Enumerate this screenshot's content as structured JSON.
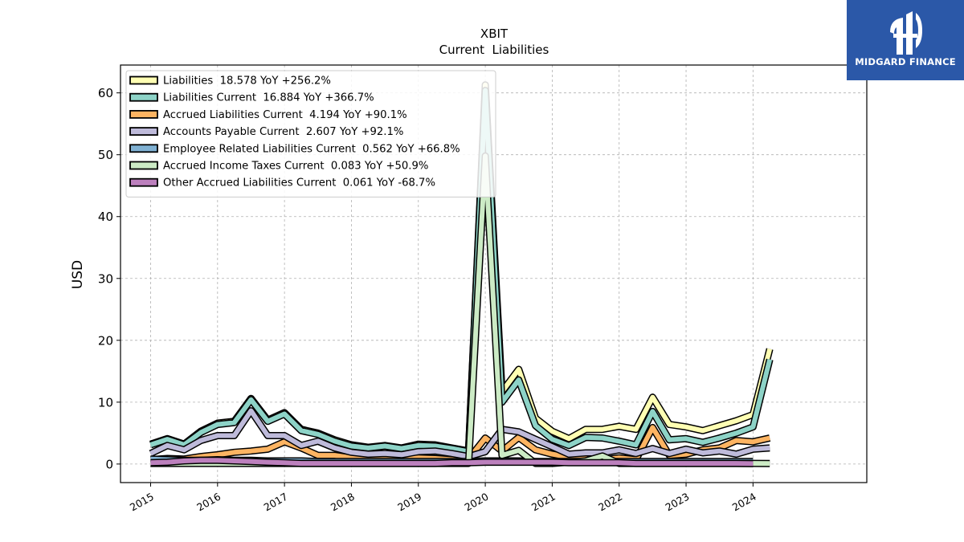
{
  "title": "XBIT",
  "subtitle": "Current  Liabilities",
  "brand": {
    "name": "MIDGARD FINANCE",
    "color": "#2b58a8"
  },
  "chart_data": {
    "type": "line",
    "ylabel": "USD",
    "xlabel": "",
    "ylim": [
      -3,
      64.5
    ],
    "yticks": [
      0,
      10,
      20,
      30,
      40,
      50,
      60
    ],
    "xlim": [
      2014.55,
      2025.7
    ],
    "xticks": [
      2015,
      2016,
      2017,
      2018,
      2019,
      2020,
      2021,
      2022,
      2023,
      2024
    ],
    "grid": true,
    "legend_position": "top-left",
    "series": [
      {
        "name": "Liabilities",
        "legend": "Liabilities  18.578 YoY +256.2%",
        "color": "#ffffb3",
        "points": [
          [
            2015.0,
            3.2
          ],
          [
            2015.25,
            4.1
          ],
          [
            2015.5,
            3.2
          ],
          [
            2015.75,
            5.3
          ],
          [
            2016.0,
            6.6
          ],
          [
            2016.25,
            6.9
          ],
          [
            2016.5,
            10.6
          ],
          [
            2016.75,
            7.1
          ],
          [
            2017.0,
            8.3
          ],
          [
            2017.25,
            5.6
          ],
          [
            2017.5,
            5.0
          ],
          [
            2017.75,
            3.9
          ],
          [
            2018.0,
            3.1
          ],
          [
            2018.25,
            2.7
          ],
          [
            2018.5,
            3.0
          ],
          [
            2018.75,
            2.6
          ],
          [
            2019.0,
            3.2
          ],
          [
            2019.25,
            3.1
          ],
          [
            2019.5,
            2.6
          ],
          [
            2019.75,
            2.1
          ],
          [
            2020.0,
            61.3
          ],
          [
            2020.25,
            11.7
          ],
          [
            2020.5,
            15.3
          ],
          [
            2020.75,
            7.4
          ],
          [
            2021.0,
            5.3
          ],
          [
            2021.25,
            4.1
          ],
          [
            2021.5,
            5.6
          ],
          [
            2021.75,
            5.6
          ],
          [
            2022.0,
            6.1
          ],
          [
            2022.25,
            5.6
          ],
          [
            2022.5,
            10.8
          ],
          [
            2022.75,
            6.4
          ],
          [
            2023.0,
            6.0
          ],
          [
            2023.25,
            5.4
          ],
          [
            2023.5,
            6.2
          ],
          [
            2023.75,
            7.0
          ],
          [
            2024.0,
            8.0
          ],
          [
            2024.25,
            18.6
          ]
        ]
      },
      {
        "name": "Liabilities Current",
        "legend": "Liabilities Current  16.884 YoY +366.7%",
        "color": "#8dd3c7",
        "points": [
          [
            2015.0,
            3.1
          ],
          [
            2015.25,
            4.0
          ],
          [
            2015.5,
            3.1
          ],
          [
            2015.75,
            5.1
          ],
          [
            2016.0,
            6.4
          ],
          [
            2016.25,
            6.7
          ],
          [
            2016.5,
            10.4
          ],
          [
            2016.75,
            6.9
          ],
          [
            2017.0,
            8.1
          ],
          [
            2017.25,
            5.4
          ],
          [
            2017.5,
            4.8
          ],
          [
            2017.75,
            3.7
          ],
          [
            2018.0,
            2.9
          ],
          [
            2018.25,
            2.6
          ],
          [
            2018.5,
            2.9
          ],
          [
            2018.75,
            2.5
          ],
          [
            2019.0,
            3.0
          ],
          [
            2019.25,
            2.9
          ],
          [
            2019.5,
            2.5
          ],
          [
            2019.75,
            2.0
          ],
          [
            2020.0,
            60.4
          ],
          [
            2020.25,
            10.0
          ],
          [
            2020.5,
            13.6
          ],
          [
            2020.75,
            6.2
          ],
          [
            2021.0,
            4.0
          ],
          [
            2021.25,
            3.0
          ],
          [
            2021.5,
            4.3
          ],
          [
            2021.75,
            4.2
          ],
          [
            2022.0,
            3.7
          ],
          [
            2022.25,
            3.1
          ],
          [
            2022.5,
            8.5
          ],
          [
            2022.75,
            3.9
          ],
          [
            2023.0,
            4.1
          ],
          [
            2023.25,
            3.5
          ],
          [
            2023.5,
            4.2
          ],
          [
            2023.75,
            5.0
          ],
          [
            2024.0,
            6.0
          ],
          [
            2024.25,
            16.9
          ]
        ]
      },
      {
        "name": "Accrued Liabilities Current",
        "legend": "Accrued Liabilities Current  4.194 YoY +90.1%",
        "color": "#fdb462",
        "points": [
          [
            2015.0,
            0.7
          ],
          [
            2015.25,
            0.9
          ],
          [
            2015.5,
            0.8
          ],
          [
            2015.75,
            1.2
          ],
          [
            2016.0,
            1.5
          ],
          [
            2016.25,
            1.9
          ],
          [
            2016.5,
            2.1
          ],
          [
            2016.75,
            2.4
          ],
          [
            2017.0,
            3.6
          ],
          [
            2017.25,
            2.6
          ],
          [
            2017.5,
            1.4
          ],
          [
            2017.75,
            1.4
          ],
          [
            2018.0,
            1.0
          ],
          [
            2018.25,
            0.8
          ],
          [
            2018.5,
            1.1
          ],
          [
            2018.75,
            0.9
          ],
          [
            2019.0,
            1.0
          ],
          [
            2019.25,
            0.9
          ],
          [
            2019.5,
            0.7
          ],
          [
            2019.75,
            0.8
          ],
          [
            2020.0,
            4.2
          ],
          [
            2020.25,
            2.1
          ],
          [
            2020.5,
            4.3
          ],
          [
            2020.75,
            2.3
          ],
          [
            2021.0,
            1.6
          ],
          [
            2021.25,
            1.1
          ],
          [
            2021.5,
            0.9
          ],
          [
            2021.75,
            0.7
          ],
          [
            2022.0,
            1.0
          ],
          [
            2022.25,
            0.7
          ],
          [
            2022.5,
            5.9
          ],
          [
            2022.75,
            1.4
          ],
          [
            2023.0,
            1.6
          ],
          [
            2023.25,
            2.3
          ],
          [
            2023.5,
            2.6
          ],
          [
            2023.75,
            3.8
          ],
          [
            2024.0,
            3.6
          ],
          [
            2024.25,
            4.2
          ]
        ]
      },
      {
        "name": "Accounts Payable Current",
        "legend": "Accounts Payable Current  2.607 YoY +92.1%",
        "color": "#bebada",
        "points": [
          [
            2015.0,
            1.7
          ],
          [
            2015.25,
            3.0
          ],
          [
            2015.5,
            2.3
          ],
          [
            2015.75,
            3.8
          ],
          [
            2016.0,
            4.6
          ],
          [
            2016.25,
            4.6
          ],
          [
            2016.5,
            8.6
          ],
          [
            2016.75,
            4.6
          ],
          [
            2017.0,
            4.6
          ],
          [
            2017.25,
            3.0
          ],
          [
            2017.5,
            3.7
          ],
          [
            2017.75,
            2.6
          ],
          [
            2018.0,
            1.9
          ],
          [
            2018.25,
            1.6
          ],
          [
            2018.5,
            1.7
          ],
          [
            2018.75,
            1.5
          ],
          [
            2019.0,
            2.0
          ],
          [
            2019.25,
            2.1
          ],
          [
            2019.5,
            1.7
          ],
          [
            2019.75,
            1.2
          ],
          [
            2020.0,
            2.0
          ],
          [
            2020.25,
            5.6
          ],
          [
            2020.5,
            5.2
          ],
          [
            2020.75,
            4.0
          ],
          [
            2021.0,
            2.8
          ],
          [
            2021.25,
            1.6
          ],
          [
            2021.5,
            1.8
          ],
          [
            2021.75,
            1.8
          ],
          [
            2022.0,
            2.3
          ],
          [
            2022.25,
            1.7
          ],
          [
            2022.5,
            2.5
          ],
          [
            2022.75,
            1.7
          ],
          [
            2023.0,
            2.4
          ],
          [
            2023.25,
            1.8
          ],
          [
            2023.5,
            2.1
          ],
          [
            2023.75,
            1.6
          ],
          [
            2024.0,
            2.4
          ],
          [
            2024.25,
            2.6
          ]
        ]
      },
      {
        "name": "Employee Related Liabilities Current",
        "legend": "Employee Related Liabilities Current  0.562 YoY +66.8%",
        "color": "#80b1d3",
        "points": [
          [
            2015.0,
            0.8
          ],
          [
            2015.25,
            0.7
          ],
          [
            2015.5,
            0.6
          ],
          [
            2015.75,
            0.6
          ],
          [
            2016.0,
            0.7
          ],
          [
            2016.25,
            0.6
          ],
          [
            2016.5,
            0.6
          ],
          [
            2016.75,
            0.5
          ],
          [
            2017.0,
            0.5
          ],
          [
            2017.25,
            0.5
          ],
          [
            2017.5,
            0.4
          ],
          [
            2017.75,
            0.4
          ],
          [
            2018.0,
            0.4
          ],
          [
            2018.25,
            0.4
          ],
          [
            2018.5,
            0.4
          ],
          [
            2018.75,
            0.4
          ],
          [
            2019.0,
            0.4
          ],
          [
            2019.25,
            0.4
          ],
          [
            2019.5,
            0.4
          ],
          [
            2019.75,
            0.4
          ],
          [
            2020.0,
            0.5
          ],
          [
            2020.25,
            0.5
          ],
          [
            2020.5,
            0.5
          ],
          [
            2020.75,
            0.4
          ],
          [
            2021.0,
            0.4
          ],
          [
            2021.25,
            0.4
          ],
          [
            2021.5,
            0.4
          ],
          [
            2021.75,
            0.4
          ],
          [
            2022.0,
            0.4
          ],
          [
            2022.25,
            0.4
          ],
          [
            2022.5,
            0.4
          ],
          [
            2022.75,
            0.4
          ],
          [
            2023.0,
            0.4
          ],
          [
            2023.25,
            0.4
          ],
          [
            2023.5,
            0.4
          ],
          [
            2023.75,
            0.4
          ],
          [
            2024.0,
            0.4
          ]
        ]
      },
      {
        "name": "Accrued Income Taxes Current",
        "legend": "Accrued Income Taxes Current  0.083 YoY +50.9%",
        "color": "#ccebc5",
        "points": [
          [
            2015.0,
            0.1
          ],
          [
            2015.5,
            0.1
          ],
          [
            2016.0,
            0.1
          ],
          [
            2016.5,
            0.1
          ],
          [
            2017.0,
            0.1
          ],
          [
            2017.5,
            0.1
          ],
          [
            2018.0,
            0.1
          ],
          [
            2018.5,
            0.1
          ],
          [
            2019.0,
            0.1
          ],
          [
            2019.5,
            0.1
          ],
          [
            2019.75,
            0.1
          ],
          [
            2020.0,
            49.8
          ],
          [
            2020.25,
            1.4
          ],
          [
            2020.5,
            2.2
          ],
          [
            2020.75,
            0.1
          ],
          [
            2021.0,
            0.1
          ],
          [
            2021.5,
            0.5
          ],
          [
            2021.75,
            1.3
          ],
          [
            2022.0,
            0.1
          ],
          [
            2022.5,
            0.1
          ],
          [
            2023.0,
            0.1
          ],
          [
            2023.5,
            0.1
          ],
          [
            2024.0,
            0.1
          ],
          [
            2024.25,
            0.08
          ]
        ]
      },
      {
        "name": "Other Accrued Liabilities Current",
        "legend": "Other Accrued Liabilities Current  0.061 YoY -68.7%",
        "color": "#bc80bd",
        "points": [
          [
            2015.0,
            0.2
          ],
          [
            2015.25,
            0.3
          ],
          [
            2015.5,
            0.5
          ],
          [
            2015.75,
            0.6
          ],
          [
            2016.0,
            0.6
          ],
          [
            2016.25,
            0.5
          ],
          [
            2016.5,
            0.4
          ],
          [
            2016.75,
            0.3
          ],
          [
            2017.0,
            0.2
          ],
          [
            2017.25,
            0.1
          ],
          [
            2017.5,
            0.1
          ],
          [
            2017.75,
            0.1
          ],
          [
            2018.0,
            0.1
          ],
          [
            2018.25,
            0.1
          ],
          [
            2018.5,
            0.1
          ],
          [
            2018.75,
            0.1
          ],
          [
            2019.0,
            0.1
          ],
          [
            2019.25,
            0.1
          ],
          [
            2019.5,
            0.2
          ],
          [
            2019.75,
            0.2
          ],
          [
            2020.0,
            0.3
          ],
          [
            2020.25,
            0.3
          ],
          [
            2020.5,
            0.3
          ],
          [
            2020.75,
            0.3
          ],
          [
            2021.0,
            0.3
          ],
          [
            2021.25,
            0.2
          ],
          [
            2021.5,
            0.2
          ],
          [
            2021.75,
            0.2
          ],
          [
            2022.0,
            0.2
          ],
          [
            2022.25,
            0.1
          ],
          [
            2022.5,
            0.1
          ],
          [
            2022.75,
            0.1
          ],
          [
            2023.0,
            0.1
          ],
          [
            2023.25,
            0.1
          ],
          [
            2023.5,
            0.1
          ],
          [
            2023.75,
            0.1
          ],
          [
            2024.0,
            0.06
          ]
        ]
      }
    ]
  }
}
